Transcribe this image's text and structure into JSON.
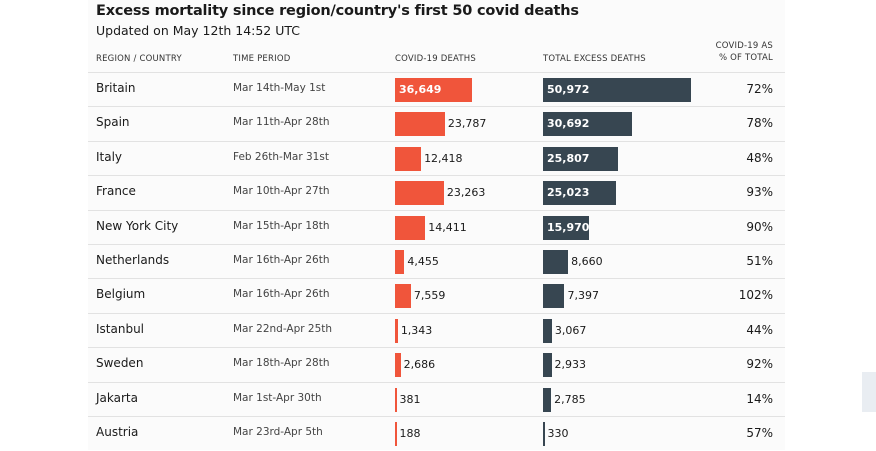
{
  "chart_data": {
    "type": "table",
    "title": "Excess mortality since region/country's first 50 covid deaths",
    "subtitle": "Updated on May 12th 14:52 UTC",
    "columns": {
      "region": "REGION / COUNTRY",
      "period": "TIME PERIOD",
      "covid": "COVID-19 DEATHS",
      "excess": "TOTAL EXCESS DEATHS",
      "pct_line1": "COVID-19 AS",
      "pct_line2": "% OF TOTAL"
    },
    "colors": {
      "covid": "#f0553b",
      "excess": "#374651"
    },
    "bar_max": 50972,
    "rows": [
      {
        "region": "Britain",
        "period": "Mar 14th-May 1st",
        "covid_deaths": 36649,
        "covid_label": "36,649",
        "excess_deaths": 50972,
        "excess_label": "50,972",
        "pct": "72%"
      },
      {
        "region": "Spain",
        "period": "Mar 11th-Apr 28th",
        "covid_deaths": 23787,
        "covid_label": "23,787",
        "excess_deaths": 30692,
        "excess_label": "30,692",
        "pct": "78%"
      },
      {
        "region": "Italy",
        "period": "Feb 26th-Mar 31st",
        "covid_deaths": 12418,
        "covid_label": "12,418",
        "excess_deaths": 25807,
        "excess_label": "25,807",
        "pct": "48%"
      },
      {
        "region": "France",
        "period": "Mar 10th-Apr 27th",
        "covid_deaths": 23263,
        "covid_label": "23,263",
        "excess_deaths": 25023,
        "excess_label": "25,023",
        "pct": "93%"
      },
      {
        "region": "New York City",
        "period": "Mar 15th-Apr 18th",
        "covid_deaths": 14411,
        "covid_label": "14,411",
        "excess_deaths": 15970,
        "excess_label": "15,970",
        "pct": "90%"
      },
      {
        "region": "Netherlands",
        "period": "Mar 16th-Apr 26th",
        "covid_deaths": 4455,
        "covid_label": "4,455",
        "excess_deaths": 8660,
        "excess_label": "8,660",
        "pct": "51%"
      },
      {
        "region": "Belgium",
        "period": "Mar 16th-Apr 26th",
        "covid_deaths": 7559,
        "covid_label": "7,559",
        "excess_deaths": 7397,
        "excess_label": "7,397",
        "pct": "102%"
      },
      {
        "region": "Istanbul",
        "period": "Mar 22nd-Apr 25th",
        "covid_deaths": 1343,
        "covid_label": "1,343",
        "excess_deaths": 3067,
        "excess_label": "3,067",
        "pct": "44%"
      },
      {
        "region": "Sweden",
        "period": "Mar 18th-Apr 28th",
        "covid_deaths": 2686,
        "covid_label": "2,686",
        "excess_deaths": 2933,
        "excess_label": "2,933",
        "pct": "92%"
      },
      {
        "region": "Jakarta",
        "period": "Mar 1st-Apr 30th",
        "covid_deaths": 381,
        "covid_label": "381",
        "excess_deaths": 2785,
        "excess_label": "2,785",
        "pct": "14%"
      },
      {
        "region": "Austria",
        "period": "Mar 23rd-Apr 5th",
        "covid_deaths": 188,
        "covid_label": "188",
        "excess_deaths": 330,
        "excess_label": "330",
        "pct": "57%"
      }
    ]
  }
}
